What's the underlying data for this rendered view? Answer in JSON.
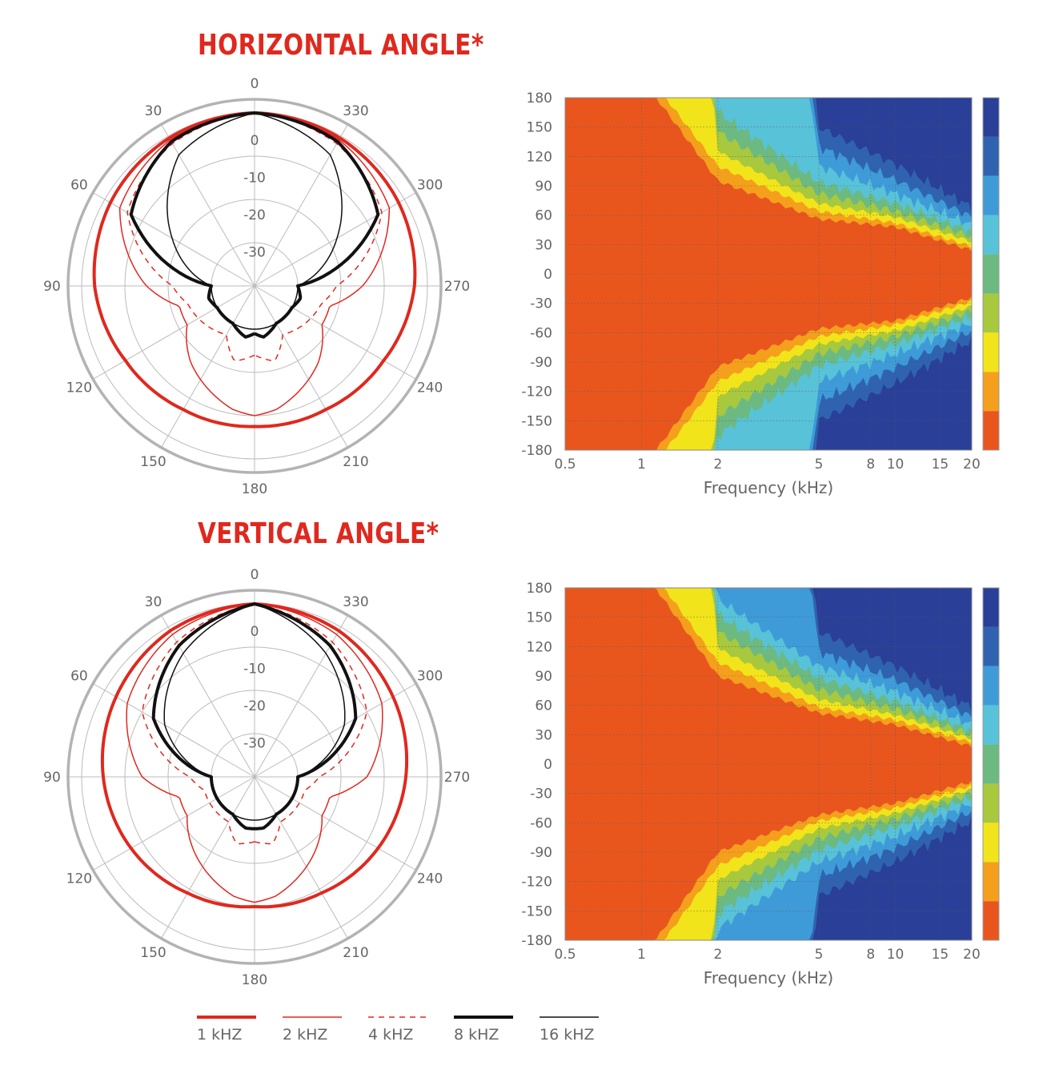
{
  "headers": {
    "horizontal": "HORIZONTAL ANGLE*",
    "vertical": "VERTICAL ANGLE*"
  },
  "colors": {
    "accent_red": "#e0281e",
    "black": "#111111",
    "grid": "#aaaaaa",
    "outer_ring": "#b3b3b3",
    "heatmap_scale": [
      "#e8561e",
      "#f4a01c",
      "#f2e41a",
      "#a8c83e",
      "#6cba82",
      "#58c2d8",
      "#3e9bd8",
      "#2f63b0",
      "#2a3f98"
    ]
  },
  "legend": [
    {
      "label": "1 kHZ",
      "color": "#e0281e",
      "width": 4,
      "dash": ""
    },
    {
      "label": "2 kHZ",
      "color": "#e0281e",
      "width": 1.5,
      "dash": ""
    },
    {
      "label": "4 kHZ",
      "color": "#e0281e",
      "width": 1.5,
      "dash": "7,6"
    },
    {
      "label": "8 kHZ",
      "color": "#111111",
      "width": 4,
      "dash": ""
    },
    {
      "label": "16 kHZ",
      "color": "#111111",
      "width": 1.5,
      "dash": ""
    }
  ],
  "chart_data": [
    {
      "type": "polar",
      "title": "HORIZONTAL ANGLE*",
      "angle_ticks": [
        "0",
        "30",
        "60",
        "90",
        "120",
        "150",
        "180",
        "210",
        "240",
        "270",
        "300",
        "330"
      ],
      "radial_ticks": [
        "0",
        "-10",
        "-20",
        "-30"
      ],
      "radial_range_db": [
        -30,
        0
      ],
      "series": [
        {
          "name": "1 kHZ",
          "angles": [
            0,
            30,
            60,
            90,
            120,
            150,
            180
          ],
          "db": [
            0,
            -0.5,
            -1.5,
            -3,
            -5.5,
            -7,
            -7.5
          ]
        },
        {
          "name": "2 kHZ",
          "angles": [
            0,
            30,
            60,
            90,
            105,
            120,
            140,
            160,
            170,
            180
          ],
          "db": [
            0,
            -1,
            -4,
            -15,
            -22,
            -22,
            -17,
            -13,
            -11,
            -10
          ]
        },
        {
          "name": "4 kHZ",
          "angles": [
            0,
            30,
            60,
            90,
            105,
            120,
            150,
            165,
            180
          ],
          "db": [
            0,
            -2,
            -6,
            -21,
            -24,
            -25,
            -27,
            -22,
            -24
          ]
        },
        {
          "name": "8 kHZ",
          "angles": [
            0,
            30,
            60,
            90,
            105,
            120,
            150,
            170,
            180
          ],
          "db": [
            0,
            -1.5,
            -7,
            -30,
            -29,
            -30,
            -30,
            -28,
            -29
          ]
        },
        {
          "name": "16 kHZ",
          "angles": [
            0,
            30,
            60,
            90,
            120,
            150,
            180
          ],
          "db": [
            0,
            -5,
            -18,
            -30,
            -30,
            -30,
            -30
          ]
        }
      ]
    },
    {
      "type": "polar",
      "title": "VERTICAL ANGLE*",
      "angle_ticks": [
        "0",
        "30",
        "60",
        "90",
        "120",
        "150",
        "180",
        "210",
        "240",
        "270",
        "300",
        "330"
      ],
      "radial_ticks": [
        "0",
        "-10",
        "-20",
        "-30"
      ],
      "radial_range_db": [
        -30,
        0
      ],
      "series": [
        {
          "name": "1 kHZ",
          "angles": [
            0,
            30,
            60,
            90,
            120,
            150,
            180
          ],
          "db": [
            0,
            -1,
            -3,
            -5,
            -7,
            -9,
            -10
          ]
        },
        {
          "name": "2 kHZ",
          "angles": [
            0,
            30,
            60,
            90,
            105,
            120,
            140,
            160,
            170,
            180
          ],
          "db": [
            0,
            -2,
            -6,
            -14,
            -22,
            -22,
            -18,
            -14,
            -12,
            -11
          ]
        },
        {
          "name": "4 kHZ",
          "angles": [
            0,
            30,
            60,
            90,
            105,
            120,
            150,
            165,
            180
          ],
          "db": [
            0,
            -4,
            -10,
            -25,
            -28,
            -28,
            -28,
            -24,
            -25
          ]
        },
        {
          "name": "8 kHZ",
          "angles": [
            0,
            30,
            60,
            90,
            120,
            150,
            170,
            180
          ],
          "db": [
            0,
            -5,
            -13,
            -30,
            -30,
            -30,
            -28,
            -28
          ]
        },
        {
          "name": "16 kHZ",
          "angles": [
            0,
            30,
            60,
            90,
            120,
            150,
            180
          ],
          "db": [
            0,
            -7,
            -16,
            -30,
            -30,
            -30,
            -30
          ]
        }
      ]
    },
    {
      "type": "heatmap",
      "xlabel": "Frequency (kHz)",
      "x_scale": "log",
      "xlim": [
        0.5,
        20
      ],
      "x_ticks": [
        "0.5",
        "1",
        "2",
        "5",
        "8",
        "10",
        "15",
        "20"
      ],
      "ylim": [
        -180,
        180
      ],
      "y_ticks": [
        "180",
        "150",
        "120",
        "90",
        "60",
        "30",
        "0",
        "-30",
        "-60",
        "-90",
        "-120",
        "-150",
        "-180"
      ],
      "contour_levels": 9,
      "level_boundary_angles_by_freq": {
        "freq_khz": [
          0.5,
          1,
          2,
          5,
          10,
          20
        ],
        "boundary_deg": [
          [
            999,
            999,
            999,
            999,
            999,
            999
          ],
          [
            999,
            200,
            95,
            56,
            48,
            24
          ],
          [
            999,
            212,
            110,
            64,
            52,
            28
          ],
          [
            999,
            999,
            125,
            72,
            58,
            33
          ],
          [
            999,
            999,
            145,
            82,
            64,
            38
          ],
          [
            999,
            999,
            165,
            94,
            72,
            43
          ],
          [
            999,
            999,
            999,
            110,
            82,
            50
          ],
          [
            999,
            999,
            999,
            130,
            96,
            58
          ],
          [
            999,
            999,
            999,
            150,
            112,
            68
          ]
        ]
      }
    },
    {
      "type": "heatmap",
      "xlabel": "Frequency (kHz)",
      "x_scale": "log",
      "xlim": [
        0.5,
        20
      ],
      "x_ticks": [
        "0.5",
        "1",
        "2",
        "5",
        "8",
        "10",
        "15",
        "20"
      ],
      "ylim": [
        -180,
        180
      ],
      "y_ticks": [
        "180",
        "150",
        "120",
        "90",
        "60",
        "30",
        "0",
        "-30",
        "-60",
        "-90",
        "-120",
        "-150",
        "-180"
      ],
      "contour_levels": 9,
      "level_boundary_angles_by_freq": {
        "freq_khz": [
          0.5,
          1,
          2,
          5,
          10,
          20
        ],
        "boundary_deg": [
          [
            999,
            999,
            999,
            999,
            999,
            999
          ],
          [
            999,
            200,
            90,
            52,
            40,
            18
          ],
          [
            999,
            212,
            104,
            58,
            45,
            22
          ],
          [
            999,
            999,
            118,
            66,
            50,
            26
          ],
          [
            999,
            999,
            135,
            76,
            56,
            30
          ],
          [
            999,
            999,
            152,
            88,
            64,
            34
          ],
          [
            999,
            999,
            168,
            100,
            74,
            40
          ],
          [
            999,
            999,
            999,
            115,
            86,
            48
          ],
          [
            999,
            999,
            999,
            135,
            100,
            58
          ]
        ]
      }
    }
  ]
}
